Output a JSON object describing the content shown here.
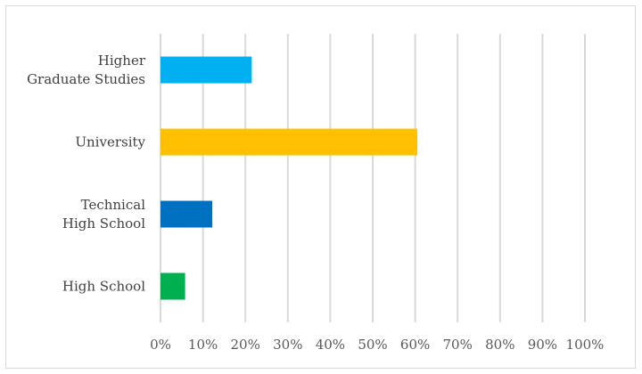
{
  "chart_data": {
    "type": "bar",
    "orientation": "horizontal",
    "categories": [
      "Higher Graduate Studies",
      "University",
      "Technical High School",
      "High School"
    ],
    "category_label_lines": [
      [
        "Higher",
        "Graduate Studies"
      ],
      [
        "University"
      ],
      [
        "Technical",
        "High School"
      ],
      [
        "High School"
      ]
    ],
    "values": [
      21.5,
      60.5,
      12.2,
      5.8
    ],
    "colors": [
      "#00b0f0",
      "#ffc000",
      "#0070c0",
      "#00b050"
    ],
    "xlim": [
      0,
      100
    ],
    "x_ticks": [
      0,
      10,
      20,
      30,
      40,
      50,
      60,
      70,
      80,
      90,
      100
    ],
    "x_tick_labels": [
      "0%",
      "10%",
      "20%",
      "30%",
      "40%",
      "50%",
      "60%",
      "70%",
      "80%",
      "90%",
      "100%"
    ],
    "grid": "vertical",
    "legend": "none",
    "title": "",
    "xlabel": "",
    "ylabel": ""
  }
}
